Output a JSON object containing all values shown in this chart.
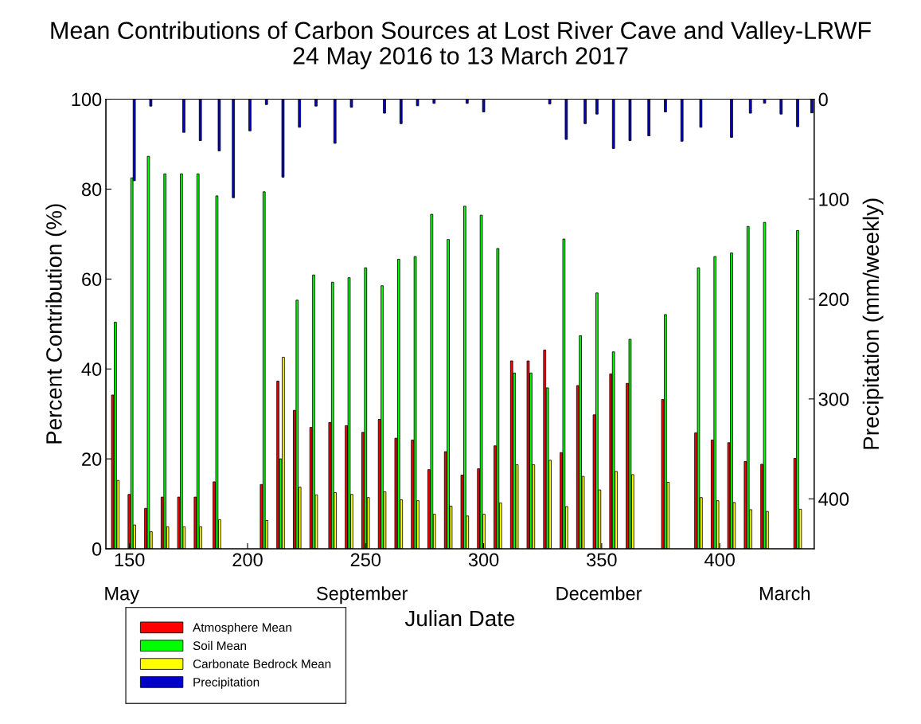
{
  "chart_data": {
    "type": "bar",
    "title": "Mean Contributions of Carbon Sources at Lost River Cave and Valley-LRWF",
    "subtitle": "24 May 2016 to 13 March 2017",
    "xlabel": "Julian Date",
    "ylabel": "Percent Contribution (%)",
    "y2label": "Precipitation (mm/weekly)",
    "x": [
      144,
      151,
      158,
      165,
      172,
      179,
      187,
      207,
      214,
      221,
      228,
      236,
      243,
      250,
      257,
      264,
      271,
      278,
      285,
      292,
      299,
      306,
      313,
      320,
      327,
      334,
      341,
      348,
      355,
      362,
      377,
      391,
      398,
      405,
      412,
      419,
      433
    ],
    "series": [
      {
        "name": "Atmosphere Mean",
        "color": "#ff0000",
        "values": [
          34.2,
          12.1,
          9.0,
          11.5,
          11.5,
          11.5,
          14.9,
          14.3,
          37.3,
          30.8,
          27.0,
          28.1,
          27.4,
          25.9,
          28.8,
          24.6,
          24.2,
          17.6,
          21.6,
          16.4,
          17.8,
          22.9,
          41.8,
          41.8,
          44.2,
          21.4,
          36.3,
          29.8,
          38.9,
          36.8,
          33.2,
          25.8,
          24.2,
          23.6,
          19.4,
          18.8,
          20.1
        ]
      },
      {
        "name": "Soil Mean",
        "color": "#00ff00",
        "values": [
          50.4,
          82.5,
          87.3,
          83.4,
          83.4,
          83.4,
          78.5,
          79.4,
          20.0,
          55.3,
          60.9,
          59.3,
          60.3,
          62.5,
          58.5,
          64.4,
          65.0,
          74.4,
          68.8,
          76.2,
          74.2,
          66.8,
          39.1,
          39.1,
          35.8,
          68.9,
          47.4,
          56.9,
          43.8,
          46.6,
          52.1,
          62.5,
          65.0,
          65.8,
          71.7,
          72.6,
          70.8
        ]
      },
      {
        "name": "Carbonate Bedrock Mean",
        "color": "#ffff00",
        "values": [
          15.2,
          5.3,
          3.8,
          4.9,
          4.9,
          4.9,
          6.5,
          6.3,
          42.6,
          13.7,
          12.0,
          12.5,
          12.1,
          11.4,
          12.7,
          10.9,
          10.7,
          7.7,
          9.5,
          7.3,
          7.7,
          10.2,
          18.7,
          18.7,
          19.7,
          9.4,
          16.1,
          13.1,
          17.2,
          16.5,
          14.8,
          11.4,
          10.7,
          10.3,
          8.7,
          8.3,
          8.8
        ]
      },
      {
        "name": "Precipitation",
        "color": "#0000cc",
        "axis": "y2",
        "x": [
          152,
          159,
          173,
          180,
          188,
          194,
          201,
          208,
          215,
          222,
          229,
          237,
          244,
          258,
          265,
          272,
          279,
          293,
          300,
          328,
          335,
          343,
          348,
          355,
          362,
          370,
          377,
          384,
          392,
          405,
          413,
          419,
          426,
          433,
          439
        ],
        "values": [
          81.6,
          6.9,
          33.2,
          41.5,
          51.7,
          98.6,
          31.7,
          5.4,
          78.0,
          28.1,
          6.9,
          44.2,
          8.1,
          14.0,
          24.5,
          6.6,
          4.2,
          4.2,
          12.8,
          4.8,
          40.3,
          24.5,
          14.9,
          49.3,
          41.5,
          36.7,
          12.8,
          42.1,
          28.1,
          38.2,
          14.0,
          3.9,
          14.9,
          27.5,
          13.7
        ]
      }
    ],
    "xlim": [
      140,
      440
    ],
    "xticks": [
      150,
      200,
      250,
      300,
      350,
      400
    ],
    "ylim": [
      0,
      100
    ],
    "yticks": [
      0,
      20,
      40,
      60,
      80,
      100
    ],
    "y2lim": [
      450,
      0
    ],
    "y2ticks": [
      0,
      100,
      200,
      300,
      400
    ],
    "annotations": [
      "May",
      "September",
      "December",
      "March"
    ],
    "legend": "bottom left",
    "grid": false
  }
}
